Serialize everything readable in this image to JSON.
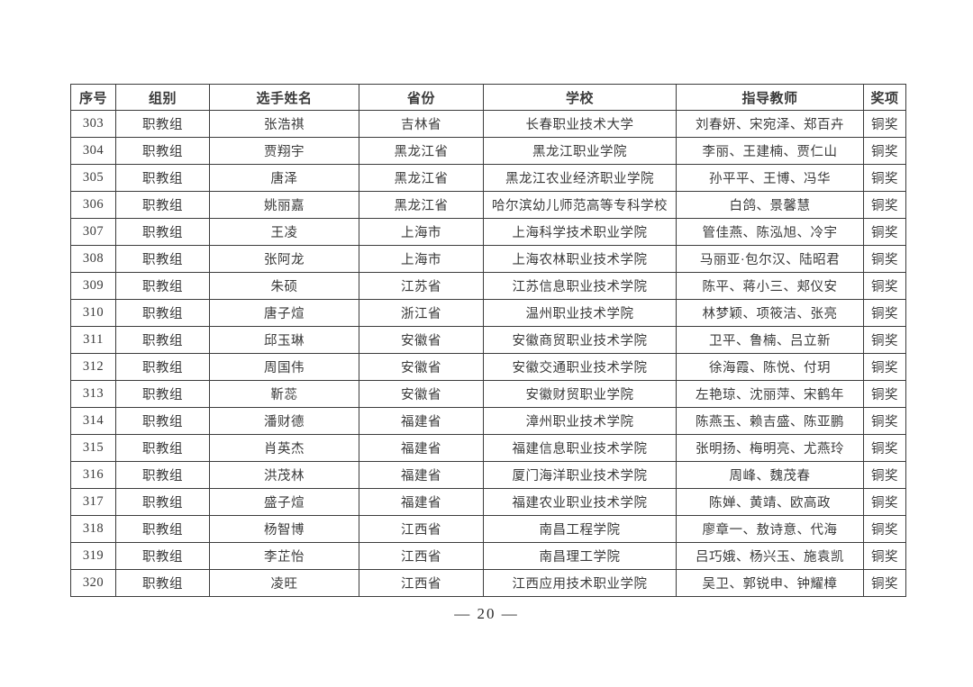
{
  "colors": {
    "background": "#ffffff",
    "text": "#3a3a3a",
    "border": "#3c3c3c"
  },
  "table": {
    "headers": [
      "序号",
      "组别",
      "选手姓名",
      "省份",
      "学校",
      "指导教师",
      "奖项"
    ],
    "rows": [
      [
        "303",
        "职教组",
        "张浩祺",
        "吉林省",
        "长春职业技术大学",
        "刘春妍、宋宛泽、郑百卉",
        "铜奖"
      ],
      [
        "304",
        "职教组",
        "贾翔宇",
        "黑龙江省",
        "黑龙江职业学院",
        "李丽、王建楠、贾仁山",
        "铜奖"
      ],
      [
        "305",
        "职教组",
        "唐泽",
        "黑龙江省",
        "黑龙江农业经济职业学院",
        "孙平平、王博、冯华",
        "铜奖"
      ],
      [
        "306",
        "职教组",
        "姚丽嘉",
        "黑龙江省",
        "哈尔滨幼儿师范高等专科学校",
        "白鸽、景馨慧",
        "铜奖"
      ],
      [
        "307",
        "职教组",
        "王凌",
        "上海市",
        "上海科学技术职业学院",
        "管佳燕、陈泓旭、冷宇",
        "铜奖"
      ],
      [
        "308",
        "职教组",
        "张阿龙",
        "上海市",
        "上海农林职业技术学院",
        "马丽亚·包尔汉、陆昭君",
        "铜奖"
      ],
      [
        "309",
        "职教组",
        "朱硕",
        "江苏省",
        "江苏信息职业技术学院",
        "陈平、蒋小三、郏仪安",
        "铜奖"
      ],
      [
        "310",
        "职教组",
        "唐子煊",
        "浙江省",
        "温州职业技术学院",
        "林梦颖、项筱洁、张亮",
        "铜奖"
      ],
      [
        "311",
        "职教组",
        "邱玉琳",
        "安徽省",
        "安徽商贸职业技术学院",
        "卫平、鲁楠、吕立新",
        "铜奖"
      ],
      [
        "312",
        "职教组",
        "周国伟",
        "安徽省",
        "安徽交通职业技术学院",
        "徐海霞、陈悦、付玥",
        "铜奖"
      ],
      [
        "313",
        "职教组",
        "靳蕊",
        "安徽省",
        "安徽财贸职业学院",
        "左艳琼、沈丽萍、宋鹤年",
        "铜奖"
      ],
      [
        "314",
        "职教组",
        "潘财德",
        "福建省",
        "漳州职业技术学院",
        "陈燕玉、赖吉盛、陈亚鹏",
        "铜奖"
      ],
      [
        "315",
        "职教组",
        "肖英杰",
        "福建省",
        "福建信息职业技术学院",
        "张明扬、梅明亮、尤燕玲",
        "铜奖"
      ],
      [
        "316",
        "职教组",
        "洪茂林",
        "福建省",
        "厦门海洋职业技术学院",
        "周峰、魏茂春",
        "铜奖"
      ],
      [
        "317",
        "职教组",
        "盛子煊",
        "福建省",
        "福建农业职业技术学院",
        "陈婵、黄靖、欧高政",
        "铜奖"
      ],
      [
        "318",
        "职教组",
        "杨智博",
        "江西省",
        "南昌工程学院",
        "廖章一、敖诗意、代海",
        "铜奖"
      ],
      [
        "319",
        "职教组",
        "李芷怡",
        "江西省",
        "南昌理工学院",
        "吕巧娥、杨兴玉、施袁凯",
        "铜奖"
      ],
      [
        "320",
        "职教组",
        "凌旺",
        "江西省",
        "江西应用技术职业学院",
        "吴卫、郭锐申、钟耀樟",
        "铜奖"
      ]
    ]
  },
  "footer": {
    "page_number": "—  20  —"
  }
}
